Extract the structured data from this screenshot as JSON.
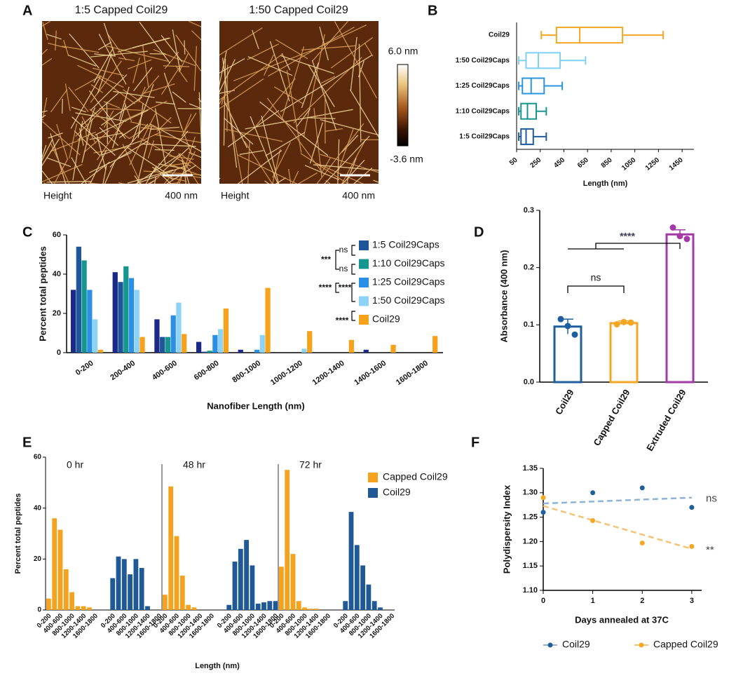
{
  "panel_a": {
    "label": "A",
    "images": [
      {
        "title": "1:5 Capped Coil29",
        "channel": "Height",
        "scale": "400 nm"
      },
      {
        "title": "1:50 Capped Coil29",
        "channel": "Height",
        "scale": "400 nm"
      }
    ],
    "colorbar": {
      "top": "6.0 nm",
      "bottom": "-3.6 nm"
    }
  },
  "chart_data": [
    {
      "type": "box",
      "label": "B",
      "categories": [
        "Coil29",
        "1:50 Coil29Caps",
        "1:25 Coil29Caps",
        "1:10 Coil29Caps",
        "1:5 Coil29Caps"
      ],
      "colors": [
        "#f5a623",
        "#7fd0f2",
        "#2a95e0",
        "#17958f",
        "#1f5a9c"
      ],
      "min": [
        259,
        68,
        68,
        68,
        68
      ],
      "q1": [
        387,
        130,
        99,
        87,
        87
      ],
      "median": [
        584,
        234,
        173,
        142,
        130
      ],
      "q3": [
        946,
        418,
        283,
        216,
        191
      ],
      "max": [
        1290,
        633,
        436,
        301,
        301
      ],
      "xlim": [
        50,
        1550
      ],
      "xticks": [
        50,
        250,
        450,
        650,
        850,
        1050,
        1250,
        1450
      ],
      "xlabel": "Length (nm)"
    },
    {
      "type": "grouped_bar",
      "label": "C",
      "categories": [
        "0-200",
        "200-400",
        "400-600",
        "600-800",
        "800-1000",
        "1000-1200",
        "1200-1400",
        "1400-1600",
        "1600-1800"
      ],
      "series": [
        {
          "color": "#1b2a86",
          "values": [
            32,
            41,
            17,
            5.5,
            1.5,
            0,
            0,
            1.5,
            0
          ]
        },
        {
          "name": "1:5  Coil29Caps",
          "color": "#1f569a",
          "values": [
            54,
            36,
            8,
            0.5,
            0,
            0,
            0,
            0,
            0
          ]
        },
        {
          "name": "1:10 Coil29Caps",
          "color": "#17968f",
          "values": [
            47,
            44,
            8,
            1,
            0,
            0,
            0,
            0,
            0
          ]
        },
        {
          "name": "1:25 Coil29Caps",
          "color": "#2b8fe6",
          "values": [
            32,
            38,
            19,
            9,
            1.5,
            0,
            0,
            0,
            0
          ]
        },
        {
          "name": "1:50 Coil29Caps",
          "color": "#8dd3f6",
          "values": [
            17,
            32,
            25.5,
            12,
            9,
            2,
            0,
            0,
            0
          ]
        },
        {
          "name": "Coil29",
          "color": "#f7a21b",
          "values": [
            1.5,
            8,
            9.5,
            22.5,
            33,
            11,
            6.5,
            4,
            8.5
          ]
        }
      ],
      "ylim": [
        0,
        60
      ],
      "yticks": [
        0,
        20,
        40,
        60
      ],
      "xlabel": "Nanofiber Length (nm)",
      "ylabel": "Percent total peptides",
      "annotations": [
        "ns",
        "ns",
        "***",
        "****",
        "****",
        "****"
      ]
    },
    {
      "type": "bar_points",
      "label": "D",
      "categories": [
        "Coil29",
        "Capped Coil29",
        "Extruded Coil29"
      ],
      "values": [
        0.097,
        0.103,
        0.258
      ],
      "errors": [
        0.013,
        0.004,
        0.008
      ],
      "points": [
        [
          0.11,
          0.098,
          0.083
        ],
        [
          0.101,
          0.105,
          0.104
        ],
        [
          0.27,
          0.255,
          0.25
        ]
      ],
      "colors": [
        "#1f5f9e",
        "#f5a623",
        "#a33aa8"
      ],
      "ylim": [
        0,
        0.3
      ],
      "yticks": [
        {
          "value": 0,
          "label": "0.0"
        },
        0.1,
        0.2,
        0.3
      ],
      "ylabel": "Absorbance (400 nm)",
      "annotations": [
        "****",
        "ns"
      ]
    },
    {
      "type": "histogram_panels",
      "label": "E",
      "categories": [
        "0-200",
        null,
        "400-600",
        null,
        "800-1000",
        null,
        "1200-1400",
        null,
        "1600-1800"
      ],
      "series": [
        {
          "name": "Capped Coil29",
          "color": "#f5a31f"
        },
        {
          "name": "Coil29",
          "color": "#1f5a96"
        }
      ],
      "panels": [
        {
          "title": "0 hr",
          "values": [
            [
              4.5,
              36,
              31.5,
              16,
              7,
              1.5,
              1.5,
              1,
              0
            ],
            [
              12.5,
              21,
              20,
              14,
              20,
              16.5,
              1.5,
              0,
              0
            ]
          ]
        },
        {
          "title": "48 hr",
          "values": [
            [
              6,
              48.5,
              29,
              13.5,
              2,
              1,
              0,
              0,
              0
            ],
            [
              2,
              19,
              24,
              27.5,
              17.5,
              2.5,
              3,
              3.5,
              3.5
            ]
          ]
        },
        {
          "title": "72 hr",
          "values": [
            [
              17,
              55,
              22,
              3.5,
              1,
              0.5,
              0.5,
              0,
              0
            ],
            [
              3.5,
              38.5,
              25.5,
              17.5,
              10,
              3.5,
              1,
              0,
              0
            ]
          ]
        }
      ],
      "ylim": [
        0,
        60
      ],
      "yticks": [
        0,
        20,
        40,
        60
      ],
      "xlabel": "Length (nm)",
      "ylabel": "Percent total peptides"
    },
    {
      "type": "scatter_trend",
      "label": "F",
      "series": [
        {
          "name": "Coil29",
          "color": "#1f5f9a",
          "trend_color": "#8db3d6",
          "x": [
            0,
            1,
            2,
            3
          ],
          "values": [
            1.26,
            1.3,
            1.31,
            1.27
          ],
          "trend": {
            "x": [
              0,
              3
            ],
            "values": [
              1.278,
              1.29
            ]
          },
          "annotation": "ns"
        },
        {
          "name": "Capped Coil29",
          "color": "#f5a623",
          "trend_color": "#f6c277",
          "x": [
            0,
            1,
            2,
            3
          ],
          "values": [
            1.29,
            1.243,
            1.197,
            1.19
          ],
          "trend": {
            "x": [
              0,
              3
            ],
            "values": [
              1.273,
              1.185
            ]
          },
          "annotation": "**"
        }
      ],
      "xlim": [
        0,
        3.2
      ],
      "xticks": [
        0,
        1,
        2,
        3
      ],
      "ylim": [
        1.1,
        1.35
      ],
      "yticks": [
        {
          "value": 1.1,
          "label": "1.10"
        },
        1.15,
        {
          "value": 1.2,
          "label": "1.20"
        },
        1.25,
        {
          "value": 1.3,
          "label": "1.30"
        },
        1.35
      ],
      "xlabel": "Days annealed at 37C",
      "ylabel": "Polydispersity Index"
    }
  ]
}
